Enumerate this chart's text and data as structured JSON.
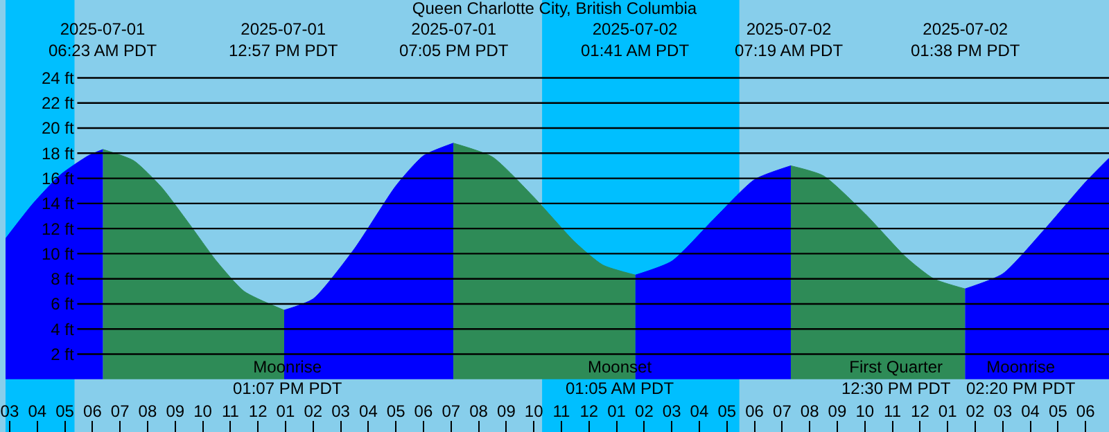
{
  "chart_data": {
    "type": "area",
    "title": "Queen Charlotte City, British Columbia",
    "xlim": [
      "2025-07-01T02:51",
      "2025-07-02T18:51"
    ],
    "ylim": [
      -4.2,
      30.2
    ],
    "xticks": [
      {
        "value": "2025-07-01T03:00",
        "label": "03"
      },
      {
        "value": "2025-07-01T04:00",
        "label": "04"
      },
      {
        "value": "2025-07-01T05:00",
        "label": "05"
      },
      {
        "value": "2025-07-01T06:00",
        "label": "06"
      },
      {
        "value": "2025-07-01T07:00",
        "label": "07"
      },
      {
        "value": "2025-07-01T08:00",
        "label": "08"
      },
      {
        "value": "2025-07-01T09:00",
        "label": "09"
      },
      {
        "value": "2025-07-01T10:00",
        "label": "10"
      },
      {
        "value": "2025-07-01T11:00",
        "label": "11"
      },
      {
        "value": "2025-07-01T12:00",
        "label": "12"
      },
      {
        "value": "2025-07-01T13:00",
        "label": "01"
      },
      {
        "value": "2025-07-01T14:00",
        "label": "02"
      },
      {
        "value": "2025-07-01T15:00",
        "label": "03"
      },
      {
        "value": "2025-07-01T16:00",
        "label": "04"
      },
      {
        "value": "2025-07-01T17:00",
        "label": "05"
      },
      {
        "value": "2025-07-01T18:00",
        "label": "06"
      },
      {
        "value": "2025-07-01T19:00",
        "label": "07"
      },
      {
        "value": "2025-07-01T20:00",
        "label": "08"
      },
      {
        "value": "2025-07-01T21:00",
        "label": "09"
      },
      {
        "value": "2025-07-01T22:00",
        "label": "10"
      },
      {
        "value": "2025-07-01T23:00",
        "label": "11"
      },
      {
        "value": "2025-07-02T00:00",
        "label": "12"
      },
      {
        "value": "2025-07-02T01:00",
        "label": "01"
      },
      {
        "value": "2025-07-02T02:00",
        "label": "02"
      },
      {
        "value": "2025-07-02T03:00",
        "label": "03"
      },
      {
        "value": "2025-07-02T04:00",
        "label": "04"
      },
      {
        "value": "2025-07-02T05:00",
        "label": "05"
      },
      {
        "value": "2025-07-02T06:00",
        "label": "06"
      },
      {
        "value": "2025-07-02T07:00",
        "label": "07"
      },
      {
        "value": "2025-07-02T08:00",
        "label": "08"
      },
      {
        "value": "2025-07-02T09:00",
        "label": "09"
      },
      {
        "value": "2025-07-02T10:00",
        "label": "10"
      },
      {
        "value": "2025-07-02T11:00",
        "label": "11"
      },
      {
        "value": "2025-07-02T12:00",
        "label": "12"
      },
      {
        "value": "2025-07-02T13:00",
        "label": "01"
      },
      {
        "value": "2025-07-02T14:00",
        "label": "02"
      },
      {
        "value": "2025-07-02T15:00",
        "label": "03"
      },
      {
        "value": "2025-07-02T16:00",
        "label": "04"
      },
      {
        "value": "2025-07-02T17:00",
        "label": "05"
      },
      {
        "value": "2025-07-02T18:00",
        "label": "06"
      }
    ],
    "yticks": [
      {
        "value": 2,
        "label": "2 ft"
      },
      {
        "value": 4,
        "label": "4 ft"
      },
      {
        "value": 6,
        "label": "6 ft"
      },
      {
        "value": 8,
        "label": "8 ft"
      },
      {
        "value": 10,
        "label": "10 ft"
      },
      {
        "value": 12,
        "label": "12 ft"
      },
      {
        "value": 14,
        "label": "14 ft"
      },
      {
        "value": 16,
        "label": "16 ft"
      },
      {
        "value": 18,
        "label": "18 ft"
      },
      {
        "value": 20,
        "label": "20 ft"
      },
      {
        "value": 22,
        "label": "22 ft"
      },
      {
        "value": 24,
        "label": "24 ft"
      }
    ],
    "grid": "y",
    "series": [
      {
        "color": "#0000ff",
        "x": [
          "2025-07-01T02:51",
          "2025-07-01T03:51",
          "2025-07-01T04:51",
          "2025-07-01T05:51",
          "2025-07-01T06:23"
        ],
        "values": [
          11.2,
          14.0,
          16.3,
          17.8,
          18.3
        ]
      },
      {
        "color": "#2e8b57",
        "x": [
          "2025-07-01T06:23",
          "2025-07-01T07:30",
          "2025-07-01T08:30",
          "2025-07-01T09:30",
          "2025-07-01T10:30",
          "2025-07-01T11:30",
          "2025-07-01T12:57"
        ],
        "values": [
          18.3,
          17.4,
          15.3,
          12.4,
          9.4,
          7.0,
          5.5
        ]
      },
      {
        "color": "#0000ff",
        "x": [
          "2025-07-01T12:57",
          "2025-07-01T14:00",
          "2025-07-01T15:30",
          "2025-07-01T17:00",
          "2025-07-01T18:00",
          "2025-07-01T19:05"
        ],
        "values": [
          5.5,
          6.4,
          10.4,
          15.4,
          17.8,
          18.8
        ]
      },
      {
        "color": "#2e8b57",
        "x": [
          "2025-07-01T19:05",
          "2025-07-01T20:30",
          "2025-07-01T22:00",
          "2025-07-01T23:30",
          "2025-07-02T00:30",
          "2025-07-02T01:41"
        ],
        "values": [
          18.8,
          17.7,
          14.5,
          10.9,
          9.1,
          8.3
        ]
      },
      {
        "color": "#0000ff",
        "x": [
          "2025-07-02T01:41",
          "2025-07-02T03:00",
          "2025-07-02T04:30",
          "2025-07-02T06:00",
          "2025-07-02T07:19"
        ],
        "values": [
          8.3,
          9.4,
          12.7,
          15.9,
          17.0
        ]
      },
      {
        "color": "#2e8b57",
        "x": [
          "2025-07-02T07:19",
          "2025-07-02T08:30",
          "2025-07-02T10:00",
          "2025-07-02T11:30",
          "2025-07-02T12:30",
          "2025-07-02T13:38"
        ],
        "values": [
          17.0,
          16.2,
          13.2,
          9.7,
          8.0,
          7.2
        ]
      },
      {
        "color": "#0000ff",
        "x": [
          "2025-07-02T13:38",
          "2025-07-02T15:00",
          "2025-07-02T16:30",
          "2025-07-02T18:00",
          "2025-07-02T18:51"
        ],
        "values": [
          7.2,
          8.4,
          11.9,
          15.7,
          17.6
        ]
      }
    ],
    "bands": [
      {
        "axis": "x",
        "from": "2025-07-01T02:51",
        "to": "2025-07-01T05:21",
        "color": "#00bfff"
      },
      {
        "axis": "x",
        "from": "2025-07-01T22:18",
        "to": "2025-07-02T05:27",
        "color": "#00bfff"
      }
    ],
    "annotations": [
      "2025-07-01\n06:23 AM PDT",
      "2025-07-01\n12:57 PM PDT",
      "2025-07-01\n07:05 PM PDT",
      "2025-07-02\n01:41 AM PDT",
      "2025-07-02\n07:19 AM PDT",
      "2025-07-02\n01:38 PM PDT",
      "Moonrise\n01:07 PM PDT",
      "Moonset\n01:05 AM PDT",
      "First Quarter\n12:30 PM PDT",
      "Moonrise\n02:20 PM PDT"
    ]
  }
}
